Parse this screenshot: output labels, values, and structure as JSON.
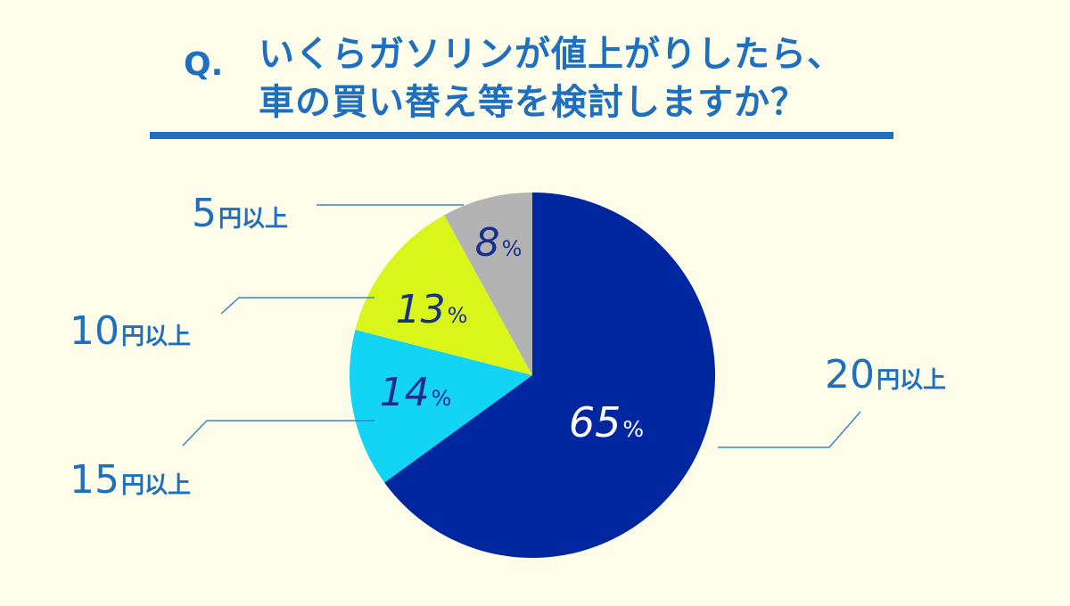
{
  "question": {
    "mark": "Q.",
    "line1": "いくらガソリンが値上がりしたら、",
    "line2": "車の買い替え等を検討しますか？"
  },
  "colors": {
    "text": "#1f6fc0",
    "leader": "#3b86c8",
    "background": "#fdfdea"
  },
  "chart_data": {
    "type": "pie",
    "title": "",
    "start_angle_deg": 0,
    "direction": "clockwise",
    "slices": [
      {
        "label": "20円以上",
        "num": "20",
        "suffix": "円以上",
        "value": 65,
        "display": "65",
        "pct_sign": "%",
        "color": "#0026a0",
        "value_color": "#ffffff"
      },
      {
        "label": "15円以上",
        "num": "15",
        "suffix": "円以上",
        "value": 14,
        "display": "14",
        "pct_sign": "%",
        "color": "#14d4f6",
        "value_color": "#1a2f8c"
      },
      {
        "label": "10円以上",
        "num": "10",
        "suffix": "円以上",
        "value": 13,
        "display": "13",
        "pct_sign": "%",
        "color": "#d9f51a",
        "value_color": "#1a2f8c"
      },
      {
        "label": "5円以上",
        "num": "5",
        "suffix": "円以上",
        "value": 8,
        "display": "8",
        "pct_sign": "%",
        "color": "#b3b3b3",
        "value_color": "#1a2f8c"
      }
    ]
  }
}
